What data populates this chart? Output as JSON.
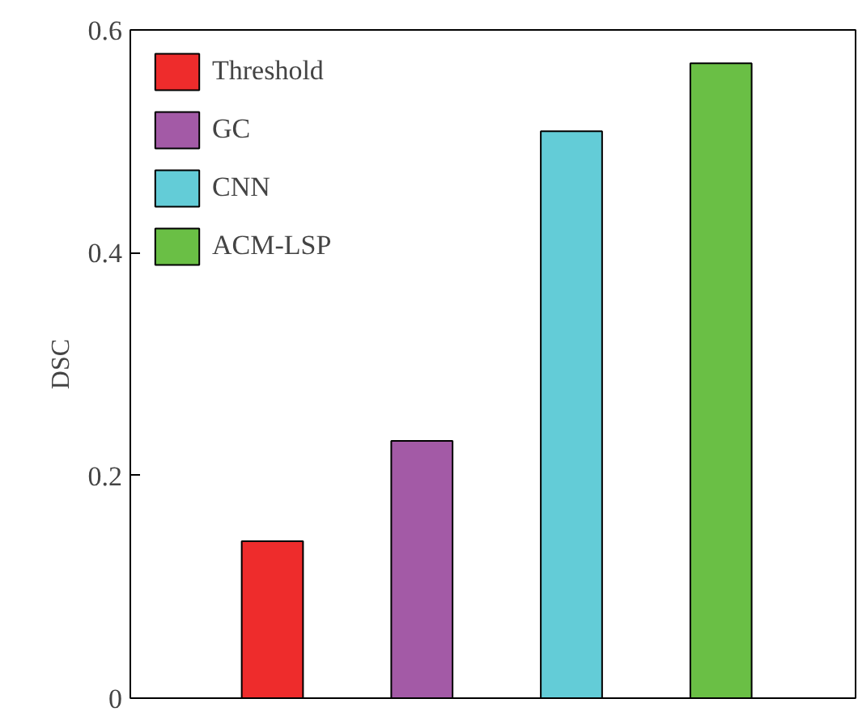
{
  "chart_data": {
    "type": "bar",
    "ylabel": "DSC",
    "stacked": true,
    "categories": [
      null,
      null,
      null,
      null
    ],
    "series": [
      {
        "name": "Threshold",
        "color": "#ee2c2c",
        "values": [
          0.141,
          null,
          null,
          null
        ]
      },
      {
        "name": "GC",
        "color": "#a35aa6",
        "values": [
          null,
          0.231,
          null,
          null
        ]
      },
      {
        "name": "CNN",
        "color": "#63ccd7",
        "values": [
          null,
          null,
          0.509,
          null
        ]
      },
      {
        "name": "ACM-LSP",
        "color": "#6abf45",
        "values": [
          null,
          null,
          null,
          0.57
        ]
      }
    ],
    "ylim": [
      0,
      0.6
    ],
    "yticks": [
      0,
      0.2,
      0.4,
      0.6
    ],
    "grid": false,
    "legend": "top left"
  }
}
